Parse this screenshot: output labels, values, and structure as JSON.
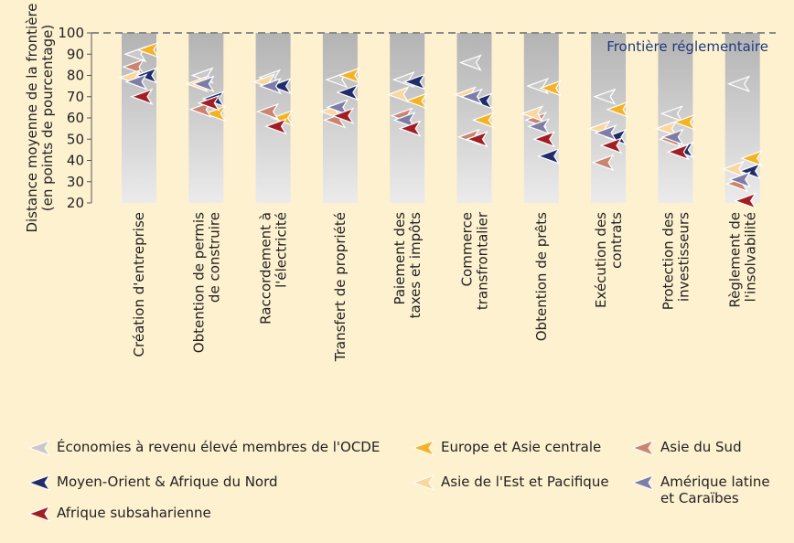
{
  "chart_data": {
    "type": "marker",
    "ylabel": [
      "Distance moyenne de la frontière",
      "(en points de pourcentage)"
    ],
    "annotation": "Frontière réglementaire",
    "frontier": 100,
    "categories": [
      [
        "Création d'entreprise"
      ],
      [
        "Obtention de permis",
        "de construire"
      ],
      [
        "Raccordement à",
        "l'électricité"
      ],
      [
        "Transfert de propriété"
      ],
      [
        "Paiement des",
        "taxes et impôts"
      ],
      [
        "Commerce",
        "transfrontalier"
      ],
      [
        "Obtention de prêts"
      ],
      [
        "Exécution des",
        "contrats"
      ],
      [
        "Protection des",
        "investisseurs"
      ],
      [
        "Règlement de",
        "l'insolvabilité"
      ]
    ],
    "series": [
      {
        "name": "Économies à revenu élevé membres de l'OCDE",
        "color": "#c9c9c9",
        "values": [
          90,
          80,
          79,
          78,
          78,
          86,
          75,
          70,
          62,
          76
        ]
      },
      {
        "name": "Europe et Asie centrale",
        "color": "#f5b324",
        "values": [
          92,
          62,
          60,
          80,
          68,
          59,
          74,
          64,
          58,
          41
        ]
      },
      {
        "name": "Asie du Sud",
        "color": "#c98570",
        "values": [
          84,
          64,
          63,
          59,
          61,
          51,
          59,
          39,
          50,
          29
        ]
      },
      {
        "name": "Moyen-Orient & Afrique du Nord",
        "color": "#1f2d6b",
        "values": [
          80,
          69,
          75,
          72,
          77,
          68,
          42,
          51,
          45,
          35
        ]
      },
      {
        "name": "Asie de l'Est et Pacifique",
        "color": "#f9d79f",
        "values": [
          79,
          76,
          77,
          63,
          71,
          71,
          62,
          55,
          55,
          36
        ]
      },
      {
        "name": "Amérique latine et Caraïbes",
        "color": "#7d7ea8",
        "values": [
          77,
          76,
          75,
          65,
          59,
          70,
          56,
          53,
          51,
          31
        ]
      },
      {
        "name": "Afrique subsaharienne",
        "color": "#a21e25",
        "values": [
          70,
          67,
          56,
          61,
          55,
          50,
          50,
          47,
          44,
          21
        ]
      }
    ],
    "ylim": [
      20,
      100
    ],
    "yticks": [
      20,
      30,
      40,
      50,
      60,
      70,
      80,
      90,
      100
    ]
  }
}
